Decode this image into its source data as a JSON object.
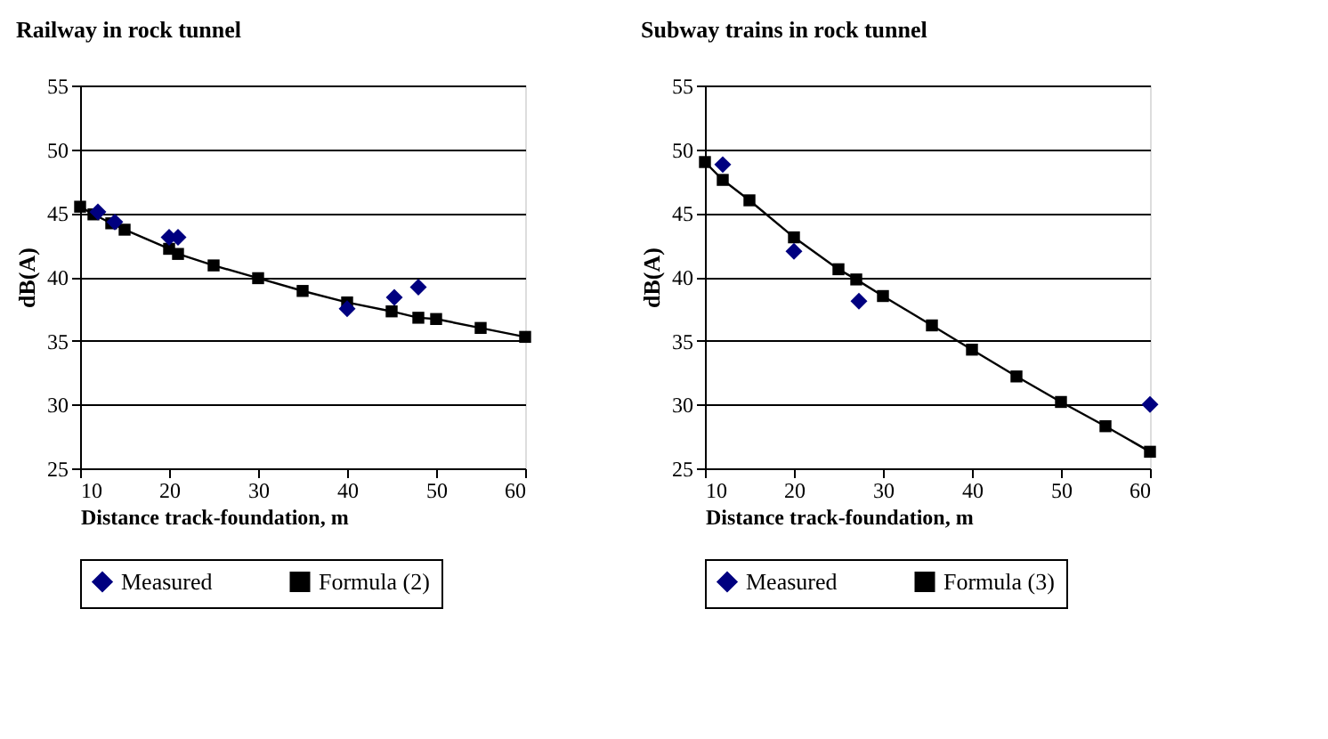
{
  "chart_data": [
    {
      "type": "scatter",
      "title": "Railway in rock tunnel",
      "xlabel": "Distance track-foundation, m",
      "ylabel": "dB(A)",
      "xlim": [
        10,
        60
      ],
      "xticks": [
        10,
        20,
        30,
        40,
        50,
        60
      ],
      "ylim": [
        25,
        55
      ],
      "yticks": [
        25,
        30,
        35,
        40,
        45,
        50,
        55
      ],
      "grid": "y",
      "legend": "bottom",
      "series": [
        {
          "name": "Measured",
          "type": "scatter",
          "marker": "diamond",
          "color": "#000080",
          "x": [
            12,
            13.9,
            20,
            21,
            40,
            45.3,
            48
          ],
          "values": [
            45.1,
            44.3,
            43.1,
            43.1,
            37.5,
            38.4,
            39.2
          ]
        },
        {
          "name": "Formula (2)",
          "type": "line",
          "marker": "square",
          "color": "#000000",
          "x": [
            10,
            11.5,
            13.5,
            15,
            20,
            21,
            25,
            30,
            35,
            40,
            45,
            48,
            50,
            55,
            60
          ],
          "values": [
            45.5,
            44.9,
            44.2,
            43.7,
            42.2,
            41.8,
            40.9,
            39.9,
            38.9,
            38.0,
            37.3,
            36.8,
            36.7,
            36.0,
            35.3
          ]
        }
      ]
    },
    {
      "type": "scatter",
      "title": "Subway trains in rock tunnel",
      "xlabel": "Distance track-foundation, m",
      "ylabel": "dB(A)",
      "xlim": [
        10,
        60
      ],
      "xticks": [
        10,
        20,
        30,
        40,
        50,
        60
      ],
      "ylim": [
        25,
        55
      ],
      "yticks": [
        25,
        30,
        35,
        40,
        45,
        50,
        55
      ],
      "grid": "y",
      "legend": "bottom",
      "series": [
        {
          "name": "Measured",
          "type": "scatter",
          "marker": "diamond",
          "color": "#000080",
          "x": [
            12,
            20,
            27.3,
            60
          ],
          "values": [
            48.8,
            42,
            38.1,
            30
          ]
        },
        {
          "name": "Formula (3)",
          "type": "line",
          "marker": "square",
          "color": "#000000",
          "x": [
            10,
            12,
            15,
            20,
            25,
            27,
            30,
            35.5,
            40,
            45,
            50,
            55,
            60
          ],
          "values": [
            49.0,
            47.6,
            46.0,
            43.1,
            40.6,
            39.8,
            38.5,
            36.2,
            34.3,
            32.2,
            30.2,
            28.3,
            26.3
          ]
        }
      ]
    }
  ]
}
